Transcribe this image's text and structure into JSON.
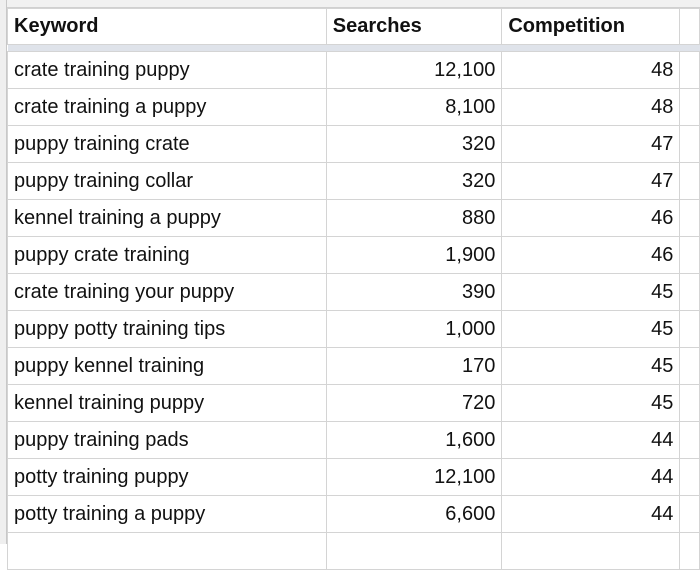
{
  "columns": [
    "Keyword",
    "Searches",
    "Competition"
  ],
  "rows": [
    [
      "crate training puppy",
      "12,100",
      "48"
    ],
    [
      "crate training a puppy",
      "8,100",
      "48"
    ],
    [
      "puppy training crate",
      "320",
      "47"
    ],
    [
      "puppy training collar",
      "320",
      "47"
    ],
    [
      "kennel training a puppy",
      "880",
      "46"
    ],
    [
      "puppy crate training",
      "1,900",
      "46"
    ],
    [
      "crate training your puppy",
      "390",
      "45"
    ],
    [
      "puppy potty training tips",
      "1,000",
      "45"
    ],
    [
      "puppy kennel training",
      "170",
      "45"
    ],
    [
      "kennel training puppy",
      "720",
      "45"
    ],
    [
      "puppy training pads",
      "1,600",
      "44"
    ],
    [
      "potty training puppy",
      "12,100",
      "44"
    ],
    [
      "potty training a puppy",
      "6,600",
      "44"
    ]
  ],
  "colors": {
    "frozen_separator": "#dfe3ea",
    "gridline": "#d4d4d4"
  }
}
